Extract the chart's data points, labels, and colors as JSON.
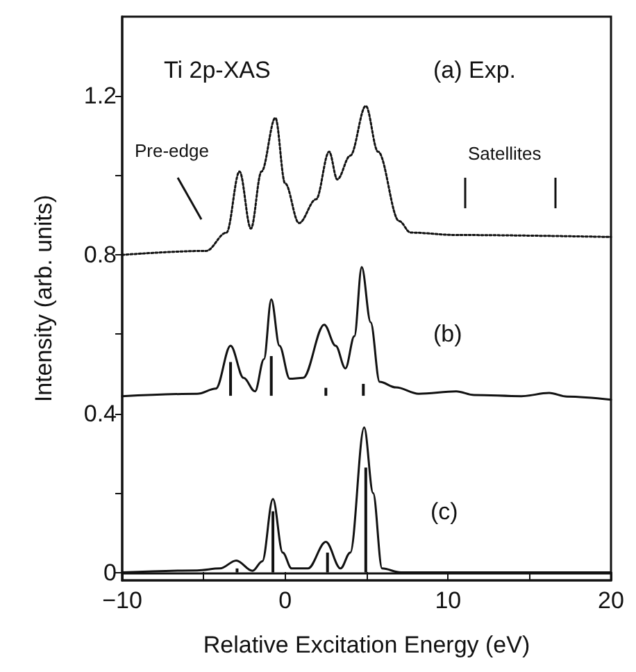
{
  "chart_data": {
    "type": "line",
    "xlabel": "Relative Excitation Energy (eV)",
    "ylabel": "Intensity (arb. units)",
    "xlim": [
      -10,
      20
    ],
    "ylim": [
      -0.02,
      1.4
    ],
    "xticks": [
      -10,
      {
        "value": -5,
        "label": null
      },
      0,
      {
        "value": 5,
        "label": null
      },
      10,
      {
        "value": 15,
        "label": null
      },
      20
    ],
    "yticks": [
      0,
      {
        "value": 0.2,
        "label": null
      },
      0.4,
      {
        "value": 0.6,
        "label": null
      },
      0.8,
      {
        "value": 1.0,
        "label": null
      },
      1.2
    ],
    "marker": "none",
    "annotations": [
      "Ti 2p-XAS",
      "(a) Exp.",
      "Pre-edge",
      "Satellites",
      "(b)",
      "(c)"
    ],
    "series": [
      {
        "line_style": "dotted",
        "color": "#111111",
        "x": [
          -10,
          -4.85,
          -3.6,
          -2.8,
          -2.1,
          -1.45,
          -0.6,
          0,
          0.85,
          1.9,
          2.7,
          3.2,
          4.0,
          4.95,
          5.7,
          7.0,
          7.7,
          10.5,
          20
        ],
        "values": [
          0.8,
          0.81,
          0.856,
          1.01,
          0.866,
          1.01,
          1.145,
          0.98,
          0.88,
          0.94,
          1.06,
          0.99,
          1.05,
          1.175,
          1.06,
          0.885,
          0.856,
          0.85,
          0.845
        ]
      },
      {
        "line_style": "solid",
        "color": "#111111",
        "x": [
          -10,
          -5.4,
          -4.25,
          -3.35,
          -2.55,
          -1.85,
          -1.3,
          -0.85,
          -0.35,
          0.28,
          1.1,
          2.4,
          3.1,
          3.7,
          4.25,
          4.7,
          5.25,
          5.8,
          6.8,
          8.2,
          10.5,
          11.6,
          14.5,
          16.2,
          17.3,
          20
        ],
        "values": [
          0.444,
          0.45,
          0.463,
          0.571,
          0.49,
          0.456,
          0.537,
          0.688,
          0.571,
          0.488,
          0.49,
          0.624,
          0.571,
          0.514,
          0.595,
          0.769,
          0.63,
          0.48,
          0.466,
          0.45,
          0.456,
          0.447,
          0.444,
          0.452,
          0.443,
          0.435
        ]
      },
      {
        "type": "bar",
        "base": [
          0.445,
          0.445,
          0.445,
          0.445
        ],
        "color": "#111111",
        "x": [
          -3.35,
          -0.85,
          2.5,
          4.8
        ],
        "values": [
          0.085,
          0.1,
          0.02,
          0.03
        ]
      },
      {
        "line_style": "solid",
        "color": "#111111",
        "x": [
          -10,
          -5.4,
          -4,
          -3,
          -2,
          -1.4,
          -0.75,
          -0.15,
          0.4,
          1.4,
          2.5,
          3.4,
          4,
          4.85,
          5.4,
          5.95,
          7.1,
          20
        ],
        "values": [
          0,
          0.005,
          0.01,
          0.03,
          0.004,
          0.028,
          0.185,
          0.05,
          0.01,
          0.01,
          0.077,
          0.01,
          0.05,
          0.365,
          0.2,
          0.01,
          0,
          0
        ]
      },
      {
        "type": "bar",
        "base": [
          0,
          0,
          0,
          0
        ],
        "color": "#111111",
        "x": [
          -2.95,
          -0.75,
          2.6,
          4.95
        ],
        "values": [
          0.01,
          0.154,
          0.05,
          0.264
        ]
      }
    ]
  }
}
